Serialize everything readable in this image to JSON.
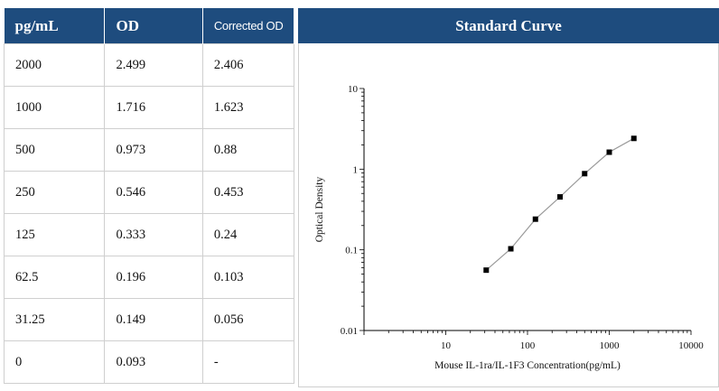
{
  "table": {
    "headers": [
      "pg/mL",
      "OD",
      "Corrected OD"
    ],
    "rows": [
      [
        "2000",
        "2.499",
        "2.406"
      ],
      [
        "1000",
        "1.716",
        "1.623"
      ],
      [
        "500",
        "0.973",
        "0.88"
      ],
      [
        "250",
        "0.546",
        "0.453"
      ],
      [
        "125",
        "0.333",
        "0.24"
      ],
      [
        "62.5",
        "0.196",
        "0.103"
      ],
      [
        "31.25",
        "0.149",
        "0.056"
      ],
      [
        "0",
        "0.093",
        "-"
      ]
    ]
  },
  "chart_data": {
    "type": "line",
    "title": "Standard Curve",
    "xlabel": "Mouse IL-1ra/IL-1F3 Concentration(pg/mL)",
    "ylabel": "Optical Density",
    "x_scale": "log",
    "y_scale": "log",
    "xlim": [
      1,
      10000
    ],
    "ylim": [
      0.01,
      10
    ],
    "x_ticks": [
      "10",
      "100",
      "1000",
      "10000"
    ],
    "y_ticks": [
      "0.01",
      "0.1",
      "1",
      "10"
    ],
    "grid": false,
    "series": [
      {
        "x": [
          31.25,
          62.5,
          125,
          250,
          500,
          1000,
          2000
        ],
        "y": [
          0.056,
          0.103,
          0.24,
          0.453,
          0.88,
          1.623,
          2.406
        ]
      }
    ],
    "colors": {
      "header_bg": "#1e4c7e",
      "line": "#9a9a9a",
      "marker": "#000000"
    }
  }
}
